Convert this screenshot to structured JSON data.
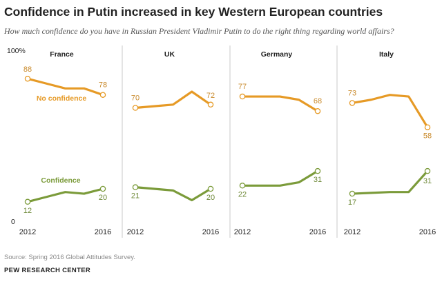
{
  "header": {
    "title": "Confidence in Putin increased in key Western European countries",
    "subtitle": "How much confidence do you have in Russian President Vladimir Putin to do the right thing regarding world affairs?"
  },
  "footer": {
    "source": "Source: Spring 2016 Global Attitudes Survey.",
    "brand": "PEW RESEARCH CENTER"
  },
  "colors": {
    "no_confidence": "#E69A26",
    "confidence": "#7B9B3A",
    "axis_label": "#222222",
    "value_no_confidence": "#C98A2B",
    "value_confidence": "#6F8A39",
    "divider": "#BBBBBB"
  },
  "chart_data": {
    "type": "line",
    "ylim": [
      0,
      100
    ],
    "ytick_labels": [
      "100%",
      "0"
    ],
    "series_labels": {
      "no_confidence": "No confidence",
      "confidence": "Confidence"
    },
    "panels": [
      {
        "title": "France",
        "x": [
          2012,
          2013,
          2014,
          2015,
          2016
        ],
        "xtick_labels": [
          "2012",
          "2016"
        ],
        "series": [
          {
            "name": "No confidence",
            "values": [
              88,
              85,
              82,
              82,
              78
            ],
            "first_label": "88",
            "last_label": "78"
          },
          {
            "name": "Confidence",
            "values": [
              12,
              15,
              18,
              17,
              20
            ],
            "first_label": "12",
            "last_label": "20"
          }
        ]
      },
      {
        "title": "UK",
        "x": [
          2012,
          2013,
          2014,
          2015,
          2016
        ],
        "xtick_labels": [
          "2012",
          "2016"
        ],
        "series": [
          {
            "name": "No confidence",
            "values": [
              70,
              71,
              72,
              80,
              72
            ],
            "first_label": "70",
            "last_label": "72"
          },
          {
            "name": "Confidence",
            "values": [
              21,
              20,
              19,
              13,
              20
            ],
            "first_label": "21",
            "last_label": "20"
          }
        ]
      },
      {
        "title": "Germany",
        "x": [
          2012,
          2013,
          2014,
          2015,
          2016
        ],
        "xtick_labels": [
          "2012",
          "2016"
        ],
        "series": [
          {
            "name": "No confidence",
            "values": [
              77,
              77,
              77,
              75,
              68
            ],
            "first_label": "77",
            "last_label": "68"
          },
          {
            "name": "Confidence",
            "values": [
              22,
              22,
              22,
              24,
              31
            ],
            "first_label": "22",
            "last_label": "31"
          }
        ]
      },
      {
        "title": "Italy",
        "x": [
          2012,
          2013,
          2014,
          2015,
          2016
        ],
        "xtick_labels": [
          "2012",
          "2016"
        ],
        "series": [
          {
            "name": "No confidence",
            "values": [
              73,
              75,
              78,
              77,
              58
            ],
            "first_label": "73",
            "last_label": "58"
          },
          {
            "name": "Confidence",
            "values": [
              17,
              17.5,
              18,
              18,
              31
            ],
            "first_label": "17",
            "last_label": "31"
          }
        ]
      }
    ]
  }
}
